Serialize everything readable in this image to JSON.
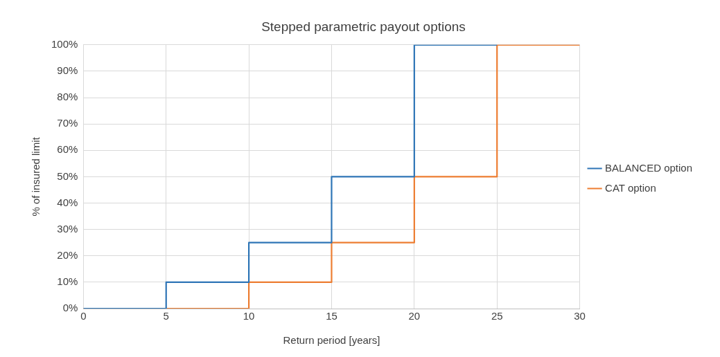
{
  "chart_data": {
    "type": "step",
    "title": "Stepped parametric payout options",
    "xlabel": "Return period [years]",
    "ylabel": "% of insured limit",
    "series": [
      {
        "name": "BALANCED option",
        "color": "#2e75b6",
        "x": [
          0,
          5,
          10,
          15,
          20,
          25
        ],
        "values": [
          0,
          10,
          25,
          50,
          100,
          100
        ]
      },
      {
        "name": "CAT option",
        "color": "#ed7d31",
        "x": [
          0,
          10,
          15,
          20,
          25,
          30
        ],
        "values": [
          0,
          10,
          25,
          50,
          100,
          100
        ]
      }
    ],
    "xlim": [
      0,
      30
    ],
    "xticks": [
      0,
      5,
      10,
      15,
      20,
      25,
      30
    ],
    "ylim": [
      0,
      100
    ],
    "yticks": [
      {
        "value": 0,
        "label": "0%"
      },
      {
        "value": 10,
        "label": "10%"
      },
      {
        "value": 20,
        "label": "20%"
      },
      {
        "value": 30,
        "label": "30%"
      },
      {
        "value": 40,
        "label": "40%"
      },
      {
        "value": 50,
        "label": "50%"
      },
      {
        "value": 60,
        "label": "60%"
      },
      {
        "value": 70,
        "label": "70%"
      },
      {
        "value": 80,
        "label": "80%"
      },
      {
        "value": 90,
        "label": "90%"
      },
      {
        "value": 100,
        "label": "100%"
      }
    ],
    "grid": true,
    "legend": "right",
    "marker": "none",
    "line_style": "solid"
  }
}
